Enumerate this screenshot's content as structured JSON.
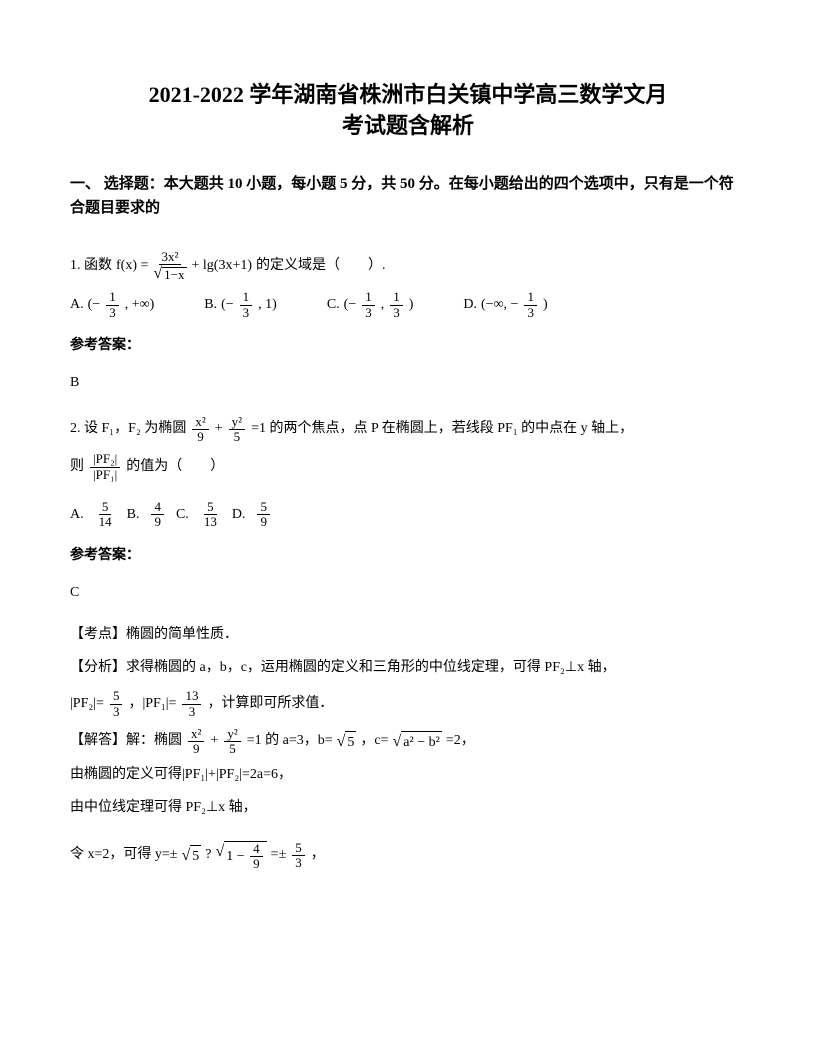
{
  "title_line1": "2021-2022 学年湖南省株洲市白关镇中学高三数学文月",
  "title_line2": "考试题含解析",
  "section1_heading": "一、 选择题：本大题共 10 小题，每小题 5 分，共 50 分。在每小题给出的四个选项中，只有是一个符合题目要求的",
  "q1": {
    "prefix": "1. 函数",
    "formula_fx": "f(x) =",
    "formula_num": "3x²",
    "formula_den_sqrt": "1−x",
    "formula_plus": "+ lg(3x+1)",
    "suffix": "的定义域是（　　）.",
    "optA_label": "A.",
    "optA_content": "(−",
    "optA_frac_num": "1",
    "optA_frac_den": "3",
    "optA_end": ", +∞)",
    "optB_label": "B.",
    "optB_content": "(−",
    "optB_frac_num": "1",
    "optB_frac_den": "3",
    "optB_end": ", 1)",
    "optC_label": "C.",
    "optC_content": "(−",
    "optC_frac1_num": "1",
    "optC_frac1_den": "3",
    "optC_mid": ",",
    "optC_frac2_num": "1",
    "optC_frac2_den": "3",
    "optC_end": ")",
    "optD_label": "D.",
    "optD_content": "(−∞, −",
    "optD_frac_num": "1",
    "optD_frac_den": "3",
    "optD_end": ")"
  },
  "answer_label": "参考答案：",
  "q1_answer": "B",
  "q2": {
    "prefix": "2. 设 F₁，F₂ 为椭圆",
    "frac1_num": "x²",
    "frac1_den": "9",
    "plus": "+",
    "frac2_num": "y²",
    "frac2_den": "5",
    "suffix": "=1 的两个焦点，点 P 在椭圆上，若线段 PF₁ 的中点在 y 轴上，",
    "line2_prefix": "则",
    "ratio_num": "|PF₂|",
    "ratio_den": "|PF₁|",
    "line2_suffix": "的值为（　　）",
    "optA_label": "A.",
    "optA_num": "5",
    "optA_den": "14",
    "optB_label": "B.",
    "optB_num": "4",
    "optB_den": "9",
    "optC_label": "C.",
    "optC_num": "5",
    "optC_den": "13",
    "optD_label": "D.",
    "optD_num": "5",
    "optD_den": "9"
  },
  "q2_answer": "C",
  "q2_point": "【考点】椭圆的简单性质．",
  "q2_analysis1": "【分析】求得椭圆的 a，b，c，运用椭圆的定义和三角形的中位线定理，可得 PF₂⊥x 轴，",
  "q2_analysis2_prefix": "|PF₂|=",
  "q2_pf2_num": "5",
  "q2_pf2_den": "3",
  "q2_analysis2_mid": "，|PF₁|=",
  "q2_pf1_num": "13",
  "q2_pf1_den": "3",
  "q2_analysis2_suffix": "，计算即可所求值．",
  "q2_solve_prefix": "【解答】解：椭圆",
  "q2_solve_frac1_num": "x²",
  "q2_solve_frac1_den": "9",
  "q2_solve_plus": "+",
  "q2_solve_frac2_num": "y²",
  "q2_solve_frac2_den": "5",
  "q2_solve_mid": "=1 的 a=3，b=",
  "q2_solve_sqrt5": "5",
  "q2_solve_c": "，c=",
  "q2_solve_sqrt_ab": "a² − b²",
  "q2_solve_eq2": "=2，",
  "q2_line_def": "由椭圆的定义可得|PF₁|+|PF₂|=2a=6，",
  "q2_line_mid": "由中位线定理可得 PF₂⊥x 轴，",
  "q2_last_prefix": "令 x=2，可得 y=±",
  "q2_last_sqrt5": "5",
  "q2_last_dot": "?",
  "q2_last_sqrt_inner_prefix": "1 −",
  "q2_last_sqrt_inner_num": "4",
  "q2_last_sqrt_inner_den": "9",
  "q2_last_eq": "=±",
  "q2_last_frac_num": "5",
  "q2_last_frac_den": "3",
  "q2_last_comma": "，"
}
